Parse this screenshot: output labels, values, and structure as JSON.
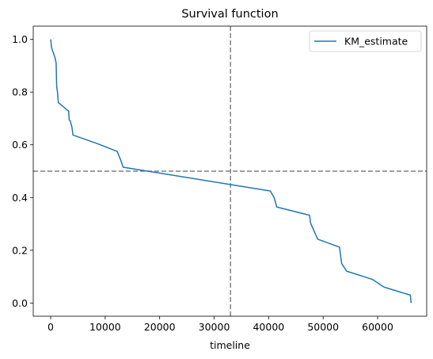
{
  "chart_data": {
    "type": "line",
    "title": "Survival function",
    "xlabel": "timeline",
    "ylabel": "",
    "xlim": [
      -3200,
      69000
    ],
    "ylim": [
      -0.05,
      1.05
    ],
    "x_ticks": [
      0,
      10000,
      20000,
      30000,
      40000,
      50000,
      60000
    ],
    "x_tick_labels": [
      "0",
      "10000",
      "20000",
      "30000",
      "40000",
      "50000",
      "60000"
    ],
    "y_ticks": [
      0.0,
      0.2,
      0.4,
      0.6,
      0.8,
      1.0
    ],
    "y_tick_labels": [
      "0.0",
      "0.2",
      "0.4",
      "0.6",
      "0.8",
      "1.0"
    ],
    "grid": false,
    "legend": {
      "placement": "top-right",
      "entries": [
        "KM_estimate"
      ]
    },
    "reference_lines": {
      "horizontal_y": 0.5,
      "vertical_x": 33000,
      "color": "#808080"
    },
    "series": [
      {
        "name": "KM_estimate",
        "color": "#1f77b4",
        "x": [
          0,
          50,
          150,
          300,
          800,
          1000,
          1100,
          1250,
          1400,
          1600,
          3300,
          3400,
          3600,
          3900,
          4100,
          8500,
          12200,
          12800,
          13300,
          17800,
          40300,
          41000,
          41500,
          47500,
          47700,
          49000,
          53000,
          53400,
          54300,
          59000,
          61200,
          66000,
          66150
        ],
        "y": [
          1.0,
          0.99,
          0.97,
          0.96,
          0.93,
          0.91,
          0.82,
          0.8,
          0.76,
          0.757,
          0.727,
          0.695,
          0.69,
          0.667,
          0.637,
          0.605,
          0.575,
          0.545,
          0.515,
          0.5,
          0.425,
          0.4,
          0.364,
          0.333,
          0.303,
          0.242,
          0.212,
          0.15,
          0.121,
          0.09,
          0.06,
          0.03,
          0.0
        ]
      }
    ]
  }
}
